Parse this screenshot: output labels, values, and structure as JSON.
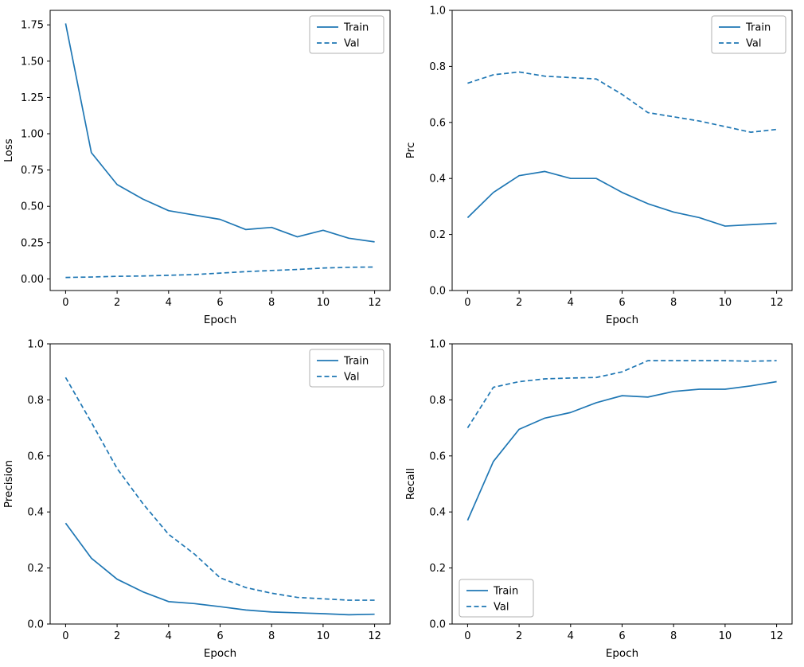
{
  "figure": {
    "background": "#ffffff",
    "line_color": "#1f77b4",
    "legend_labels": [
      "Train",
      "Val"
    ]
  },
  "chart_data": [
    {
      "type": "line",
      "title": "",
      "xlabel": "Epoch",
      "ylabel": "Loss",
      "x": [
        0,
        1,
        2,
        3,
        4,
        5,
        6,
        7,
        8,
        9,
        10,
        11,
        12
      ],
      "series": [
        {
          "name": "Train",
          "style": "solid",
          "values": [
            1.76,
            0.87,
            0.65,
            0.55,
            0.47,
            0.44,
            0.41,
            0.34,
            0.355,
            0.29,
            0.335,
            0.28,
            0.255
          ]
        },
        {
          "name": "Val",
          "style": "dashed",
          "values": [
            0.01,
            0.013,
            0.018,
            0.02,
            0.025,
            0.03,
            0.04,
            0.05,
            0.058,
            0.065,
            0.075,
            0.08,
            0.082
          ]
        }
      ],
      "xlim": [
        -0.6,
        12.6
      ],
      "ylim": [
        -0.08,
        1.85
      ],
      "xticks": [
        0,
        2,
        4,
        6,
        8,
        10,
        12
      ],
      "yticks": [
        0,
        0.25,
        0.5,
        0.75,
        1.0,
        1.25,
        1.5,
        1.75
      ],
      "ytick_decimals": 2,
      "grid": false,
      "legend_loc": "upper-right"
    },
    {
      "type": "line",
      "title": "",
      "xlabel": "Epoch",
      "ylabel": "Prc",
      "x": [
        0,
        1,
        2,
        3,
        4,
        5,
        6,
        7,
        8,
        9,
        10,
        11,
        12
      ],
      "series": [
        {
          "name": "Train",
          "style": "solid",
          "values": [
            0.26,
            0.35,
            0.41,
            0.425,
            0.4,
            0.4,
            0.35,
            0.31,
            0.28,
            0.26,
            0.23,
            0.235,
            0.24
          ]
        },
        {
          "name": "Val",
          "style": "dashed",
          "values": [
            0.74,
            0.77,
            0.78,
            0.765,
            0.76,
            0.755,
            0.7,
            0.635,
            0.62,
            0.605,
            0.585,
            0.565,
            0.575
          ]
        }
      ],
      "xlim": [
        -0.6,
        12.6
      ],
      "ylim": [
        0,
        1.0
      ],
      "xticks": [
        0,
        2,
        4,
        6,
        8,
        10,
        12
      ],
      "yticks": [
        0,
        0.2,
        0.4,
        0.6,
        0.8,
        1.0
      ],
      "ytick_decimals": 1,
      "grid": false,
      "legend_loc": "upper-right"
    },
    {
      "type": "line",
      "title": "",
      "xlabel": "Epoch",
      "ylabel": "Precision",
      "x": [
        0,
        1,
        2,
        3,
        4,
        5,
        6,
        7,
        8,
        9,
        10,
        11,
        12
      ],
      "series": [
        {
          "name": "Train",
          "style": "solid",
          "values": [
            0.36,
            0.235,
            0.16,
            0.115,
            0.08,
            0.073,
            0.062,
            0.05,
            0.043,
            0.04,
            0.037,
            0.033,
            0.035
          ]
        },
        {
          "name": "Val",
          "style": "dashed",
          "values": [
            0.88,
            0.72,
            0.555,
            0.43,
            0.32,
            0.25,
            0.165,
            0.13,
            0.11,
            0.095,
            0.09,
            0.085,
            0.085
          ]
        }
      ],
      "xlim": [
        -0.6,
        12.6
      ],
      "ylim": [
        0,
        1.0
      ],
      "xticks": [
        0,
        2,
        4,
        6,
        8,
        10,
        12
      ],
      "yticks": [
        0,
        0.2,
        0.4,
        0.6,
        0.8,
        1.0
      ],
      "ytick_decimals": 1,
      "grid": false,
      "legend_loc": "upper-right"
    },
    {
      "type": "line",
      "title": "",
      "xlabel": "Epoch",
      "ylabel": "Recall",
      "x": [
        0,
        1,
        2,
        3,
        4,
        5,
        6,
        7,
        8,
        9,
        10,
        11,
        12
      ],
      "series": [
        {
          "name": "Train",
          "style": "solid",
          "values": [
            0.37,
            0.58,
            0.695,
            0.735,
            0.755,
            0.79,
            0.815,
            0.81,
            0.83,
            0.838,
            0.838,
            0.85,
            0.865
          ]
        },
        {
          "name": "Val",
          "style": "dashed",
          "values": [
            0.7,
            0.845,
            0.865,
            0.875,
            0.878,
            0.88,
            0.9,
            0.94,
            0.94,
            0.94,
            0.94,
            0.938,
            0.94
          ]
        }
      ],
      "xlim": [
        -0.6,
        12.6
      ],
      "ylim": [
        0,
        1.0
      ],
      "xticks": [
        0,
        2,
        4,
        6,
        8,
        10,
        12
      ],
      "yticks": [
        0,
        0.2,
        0.4,
        0.6,
        0.8,
        1.0
      ],
      "ytick_decimals": 1,
      "grid": false,
      "legend_loc": "lower-left"
    }
  ]
}
